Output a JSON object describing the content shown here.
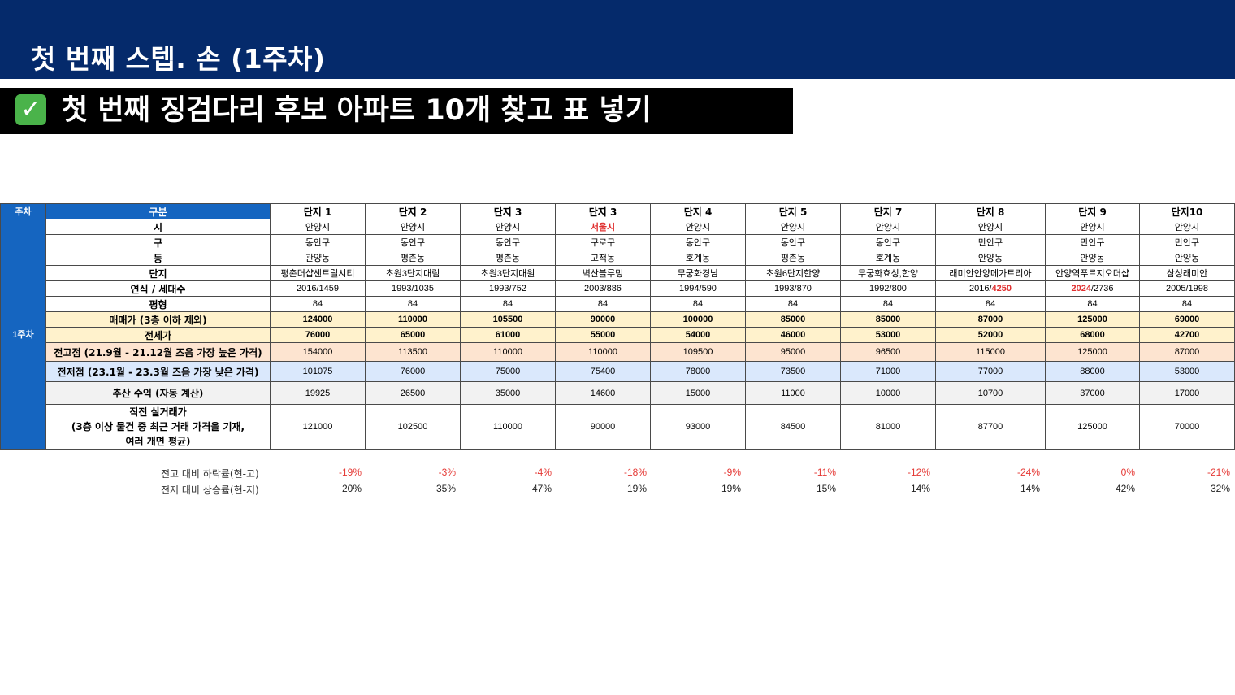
{
  "header": {
    "title": "첫 번째 스텝. 손 (1주차)"
  },
  "subtitle": {
    "text": "첫 번째 징검다리 후보 아파트 10개 찾고 표 넣기"
  },
  "table": {
    "corner": "주차",
    "category_header": "구분",
    "week_label": "1주차",
    "columns": [
      "단지 1",
      "단지 2",
      "단지 3",
      "단지 3",
      "단지 4",
      "단지 5",
      "단지 7",
      "단지 8",
      "단지 9",
      "단지10"
    ],
    "rows": [
      {
        "label": "시",
        "values": [
          "안양시",
          "안양시",
          "안양시",
          "서울시",
          "안양시",
          "안양시",
          "안양시",
          "안양시",
          "안양시",
          "안양시"
        ]
      },
      {
        "label": "구",
        "values": [
          "동안구",
          "동안구",
          "동안구",
          "구로구",
          "동안구",
          "동안구",
          "동안구",
          "만안구",
          "만안구",
          "만안구"
        ]
      },
      {
        "label": "동",
        "values": [
          "관양동",
          "평촌동",
          "평촌동",
          "고척동",
          "호계동",
          "평촌동",
          "호계동",
          "안양동",
          "안양동",
          "안양동"
        ]
      },
      {
        "label": "단지",
        "values": [
          "평촌더샵센트럴시티",
          "초원3단지대림",
          "초원3단지대원",
          "벽산블루밍",
          "무궁화경남",
          "초원6단지한양",
          "무궁화효성,한양",
          "래미안안양메가트리아",
          "안양역푸르지오더샵",
          "삼성래미안"
        ]
      },
      {
        "label": "연식 / 세대수",
        "values": [
          "2016/1459",
          "1993/1035",
          "1993/752",
          "2003/886",
          "1994/590",
          "1993/870",
          "1992/800",
          "2016/4250",
          "2024/2736",
          "2005/1998"
        ]
      },
      {
        "label": "평형",
        "values": [
          "84",
          "84",
          "84",
          "84",
          "84",
          "84",
          "84",
          "84",
          "84",
          "84"
        ]
      },
      {
        "label": "매매가 (3층 이하 제외)",
        "values": [
          "124000",
          "110000",
          "105500",
          "90000",
          "100000",
          "85000",
          "85000",
          "87000",
          "125000",
          "69000"
        ]
      },
      {
        "label": "전세가",
        "values": [
          "76000",
          "65000",
          "61000",
          "55000",
          "54000",
          "46000",
          "53000",
          "52000",
          "68000",
          "42700"
        ]
      },
      {
        "label": "전고점 (21.9월 - 21.12월 즈음 가장 높은 가격)",
        "values": [
          "154000",
          "113500",
          "110000",
          "110000",
          "109500",
          "95000",
          "96500",
          "115000",
          "125000",
          "87000"
        ]
      },
      {
        "label": "전저점 (23.1월 - 23.3월 즈음 가장 낮은 가격)",
        "values": [
          "101075",
          "76000",
          "75000",
          "75400",
          "78000",
          "73500",
          "71000",
          "77000",
          "88000",
          "53000"
        ]
      },
      {
        "label": "추산 수익 (자동 계산)",
        "values": [
          "19925",
          "26500",
          "35000",
          "14600",
          "15000",
          "11000",
          "10000",
          "10700",
          "37000",
          "17000"
        ]
      },
      {
        "label_lines": [
          "직전 실거래가",
          "(3층 이상 물건 중 최근 거래 가격을 기재,",
          "여러 개면 평균)"
        ],
        "values": [
          "121000",
          "102500",
          "110000",
          "90000",
          "93000",
          "84500",
          "81000",
          "87700",
          "125000",
          "70000"
        ]
      }
    ],
    "highlight": {
      "city_seoul": "서울시",
      "year_units_8_a": "2016/",
      "year_units_8_b": "4250",
      "year_units_9_a": "2024",
      "year_units_9_b": "/2736"
    }
  },
  "summary": {
    "drop_label": "전고 대비 하락률(현-고)",
    "drop_values": [
      "-19%",
      "-3%",
      "-4%",
      "-18%",
      "-9%",
      "-11%",
      "-12%",
      "-24%",
      "0%",
      "-21%"
    ],
    "rise_label": "전저 대비 상승률(현-저)",
    "rise_values": [
      "20%",
      "35%",
      "47%",
      "19%",
      "19%",
      "15%",
      "14%",
      "14%",
      "42%",
      "32%"
    ]
  },
  "colors": {
    "header": "#052a6b",
    "blue_header": "#1565c0",
    "yellow": "#fff2cc",
    "orange": "#fde4d0",
    "light_blue": "#dae8fc",
    "red": "#e03030"
  }
}
